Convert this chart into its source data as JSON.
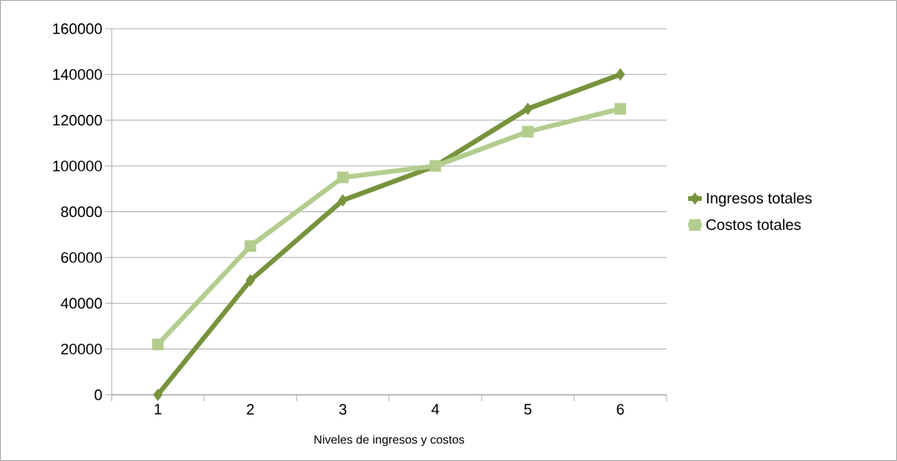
{
  "chart_data": {
    "type": "line",
    "xlabel": "Niveles de ingresos y costos",
    "categories": [
      "1",
      "2",
      "3",
      "4",
      "5",
      "6"
    ],
    "series": [
      {
        "name": "Ingresos totales",
        "color": "#77933c",
        "marker": "diamond",
        "values": [
          0,
          50000,
          85000,
          100000,
          125000,
          140000
        ]
      },
      {
        "name": "Costos totales",
        "color": "#b3cd8e",
        "marker": "square",
        "values": [
          22000,
          65000,
          95000,
          100000,
          115000,
          125000
        ]
      }
    ],
    "ylim": [
      0,
      160000
    ],
    "yticks": [
      0,
      20000,
      40000,
      60000,
      80000,
      100000,
      120000,
      140000,
      160000
    ],
    "grid": "y",
    "legend": "right"
  }
}
